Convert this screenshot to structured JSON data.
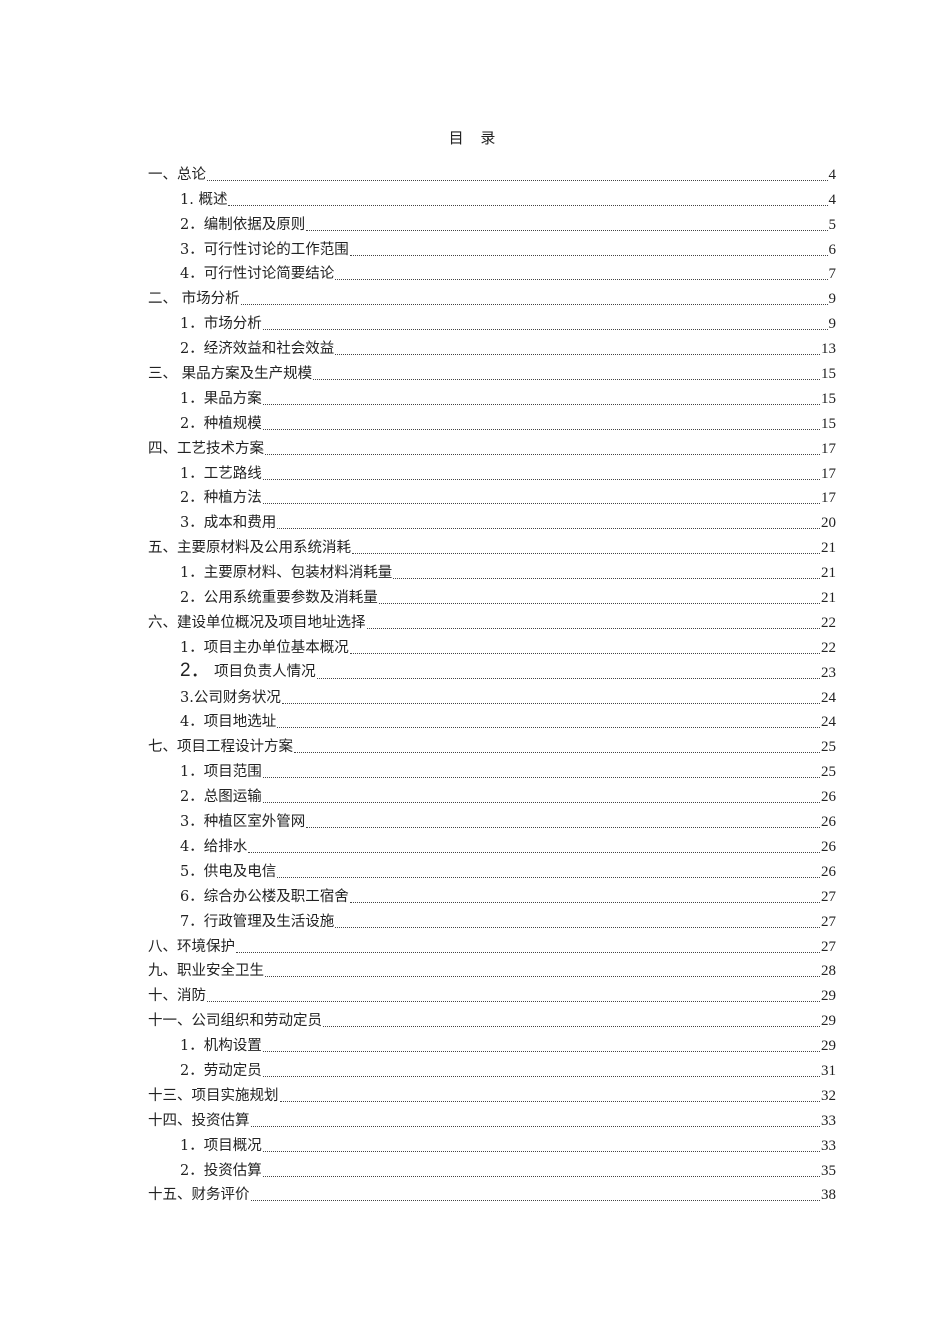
{
  "title": "目 录",
  "entries": [
    {
      "level": 1,
      "text": "一、总论",
      "page": "4"
    },
    {
      "level": 2,
      "text": "1. 概述",
      "page": "4"
    },
    {
      "level": 2,
      "text": "2．编制依据及原则",
      "page": "5"
    },
    {
      "level": 2,
      "text": "3．可行性讨论的工作范围",
      "page": "6"
    },
    {
      "level": 2,
      "text": "4．可行性讨论简要结论",
      "page": "7"
    },
    {
      "level": 1,
      "text": "二、 市场分析",
      "page": "9"
    },
    {
      "level": 2,
      "text": "1．市场分析",
      "page": "9"
    },
    {
      "level": 2,
      "text": "2．经济效益和社会效益",
      "page": "13"
    },
    {
      "level": 1,
      "text": "三、 果品方案及生产规模",
      "page": "15"
    },
    {
      "level": 2,
      "text": "1．果品方案",
      "page": "15"
    },
    {
      "level": 2,
      "text": "2．种植规模",
      "page": "15"
    },
    {
      "level": 1,
      "text": "四、工艺技术方案",
      "page": "17"
    },
    {
      "level": 2,
      "text": "1．工艺路线",
      "page": "17"
    },
    {
      "level": 2,
      "text": "2．种植方法",
      "page": "17"
    },
    {
      "level": 2,
      "text": "3．成本和费用",
      "page": "20"
    },
    {
      "level": 1,
      "text": "五、主要原材料及公用系统消耗",
      "page": "21"
    },
    {
      "level": 2,
      "text": "1．主要原材料、包装材料消耗量",
      "page": "21"
    },
    {
      "level": 2,
      "text": "2．公用系统重要参数及消耗量",
      "page": "21"
    },
    {
      "level": 1,
      "text": "六、建设单位概况及项目地址选择",
      "page": "22"
    },
    {
      "level": 2,
      "text": "1．项目主办单位基本概况",
      "page": "22"
    },
    {
      "level": 2,
      "text": "2．  项目负责人情况",
      "page": "23",
      "big": true
    },
    {
      "level": 2,
      "text": "3.公司财务状况",
      "page": "24"
    },
    {
      "level": 2,
      "text": "4．项目地选址",
      "page": "24"
    },
    {
      "level": 1,
      "text": "七、项目工程设计方案",
      "page": "25"
    },
    {
      "level": 2,
      "text": "1．项目范围",
      "page": "25"
    },
    {
      "level": 2,
      "text": "2．总图运输",
      "page": "26"
    },
    {
      "level": 2,
      "text": "3．种植区室外管网",
      "page": "26"
    },
    {
      "level": 2,
      "text": "4．给排水",
      "page": "26"
    },
    {
      "level": 2,
      "text": "5．供电及电信",
      "page": "26"
    },
    {
      "level": 2,
      "text": "6．综合办公楼及职工宿舍",
      "page": "27"
    },
    {
      "level": 2,
      "text": "7．行政管理及生活设施",
      "page": "27"
    },
    {
      "level": 1,
      "text": "八、环境保护",
      "page": "27"
    },
    {
      "level": 1,
      "text": "九、职业安全卫生",
      "page": "28"
    },
    {
      "level": 1,
      "text": "十、消防",
      "page": "29"
    },
    {
      "level": 1,
      "text": "十一、公司组织和劳动定员",
      "page": "29"
    },
    {
      "level": 2,
      "text": "1．机构设置",
      "page": "29"
    },
    {
      "level": 2,
      "text": "2．劳动定员",
      "page": "31"
    },
    {
      "level": 1,
      "text": "十三、项目实施规划",
      "page": "32"
    },
    {
      "level": 1,
      "text": "十四、投资估算",
      "page": "33"
    },
    {
      "level": 2,
      "text": "1．项目概况",
      "page": "33"
    },
    {
      "level": 2,
      "text": "2．投资估算",
      "page": "35"
    },
    {
      "level": 1,
      "text": "十五、财务评价",
      "page": "38"
    }
  ]
}
